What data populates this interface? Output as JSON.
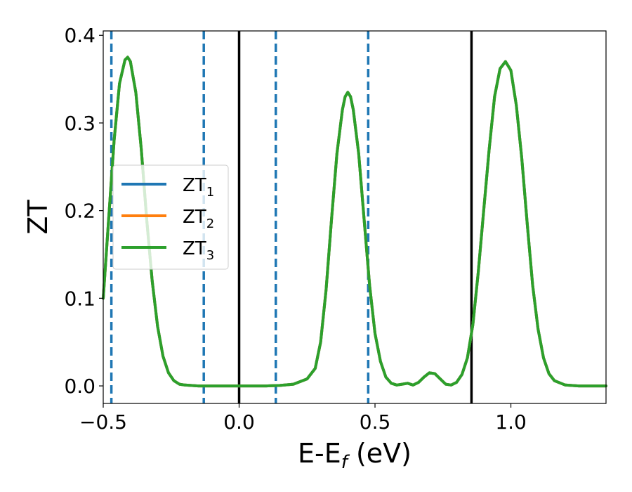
{
  "chart_data": {
    "type": "line",
    "title": "",
    "xlabel_main": "E-E",
    "xlabel_sub": "f",
    "xlabel_unit": " (eV)",
    "ylabel": "ZT",
    "xlim": [
      -0.5,
      1.35
    ],
    "ylim": [
      -0.02,
      0.405
    ],
    "xticks": [
      -0.5,
      0.0,
      0.5,
      1.0
    ],
    "xtick_labels": [
      "−0.5",
      "0.0",
      "0.5",
      "1.0"
    ],
    "yticks": [
      0.0,
      0.1,
      0.2,
      0.3,
      0.4
    ],
    "ytick_labels": [
      "0.0",
      "0.1",
      "0.2",
      "0.3",
      "0.4"
    ],
    "grid": false,
    "legend_position": "center-left",
    "series": [
      {
        "name": "ZT",
        "name_sub": "1",
        "color": "#1f77b4",
        "x": [
          -0.5,
          -0.48,
          -0.46,
          -0.44,
          -0.42,
          -0.41,
          -0.4,
          -0.38,
          -0.36,
          -0.34,
          -0.32,
          -0.3,
          -0.28,
          -0.26,
          -0.24,
          -0.22,
          -0.2,
          -0.15,
          -0.1,
          0.0,
          0.1,
          0.15,
          0.2,
          0.25,
          0.28,
          0.3,
          0.32,
          0.34,
          0.36,
          0.38,
          0.39,
          0.4,
          0.41,
          0.42,
          0.44,
          0.46,
          0.48,
          0.5,
          0.52,
          0.54,
          0.56,
          0.58,
          0.6,
          0.62,
          0.64,
          0.66,
          0.68,
          0.7,
          0.72,
          0.74,
          0.76,
          0.78,
          0.8,
          0.82,
          0.84,
          0.86,
          0.88,
          0.9,
          0.92,
          0.94,
          0.96,
          0.98,
          1.0,
          1.02,
          1.04,
          1.06,
          1.08,
          1.1,
          1.12,
          1.14,
          1.16,
          1.2,
          1.25,
          1.3,
          1.35
        ],
        "y": [
          0.1,
          0.19,
          0.28,
          0.345,
          0.372,
          0.375,
          0.37,
          0.335,
          0.27,
          0.19,
          0.12,
          0.068,
          0.034,
          0.015,
          0.006,
          0.002,
          0.001,
          0.0,
          0.0,
          0.0,
          0.0,
          0.0005,
          0.002,
          0.008,
          0.02,
          0.05,
          0.11,
          0.19,
          0.265,
          0.315,
          0.33,
          0.335,
          0.33,
          0.315,
          0.265,
          0.19,
          0.115,
          0.06,
          0.028,
          0.01,
          0.003,
          0.001,
          0.002,
          0.003,
          0.001,
          0.004,
          0.01,
          0.015,
          0.014,
          0.008,
          0.002,
          0.001,
          0.004,
          0.013,
          0.032,
          0.07,
          0.13,
          0.2,
          0.27,
          0.33,
          0.362,
          0.37,
          0.36,
          0.32,
          0.26,
          0.185,
          0.115,
          0.065,
          0.032,
          0.014,
          0.006,
          0.001,
          0.0,
          0.0,
          0.0
        ]
      },
      {
        "name": "ZT",
        "name_sub": "2",
        "color": "#ff7f0e",
        "x": [
          -0.5,
          -0.48,
          -0.46,
          -0.44,
          -0.42,
          -0.41,
          -0.4,
          -0.38,
          -0.36,
          -0.34,
          -0.32,
          -0.3,
          -0.28,
          -0.26,
          -0.24,
          -0.22,
          -0.2,
          -0.15,
          -0.1,
          0.0,
          0.1,
          0.15,
          0.2,
          0.25,
          0.28,
          0.3,
          0.32,
          0.34,
          0.36,
          0.38,
          0.39,
          0.4,
          0.41,
          0.42,
          0.44,
          0.46,
          0.48,
          0.5,
          0.52,
          0.54,
          0.56,
          0.58,
          0.6,
          0.62,
          0.64,
          0.66,
          0.68,
          0.7,
          0.72,
          0.74,
          0.76,
          0.78,
          0.8,
          0.82,
          0.84,
          0.86,
          0.88,
          0.9,
          0.92,
          0.94,
          0.96,
          0.98,
          1.0,
          1.02,
          1.04,
          1.06,
          1.08,
          1.1,
          1.12,
          1.14,
          1.16,
          1.2,
          1.25,
          1.3,
          1.35
        ],
        "y": [
          0.1,
          0.19,
          0.28,
          0.345,
          0.372,
          0.375,
          0.37,
          0.335,
          0.27,
          0.19,
          0.12,
          0.068,
          0.034,
          0.015,
          0.006,
          0.002,
          0.001,
          0.0,
          0.0,
          0.0,
          0.0,
          0.0005,
          0.002,
          0.008,
          0.02,
          0.05,
          0.11,
          0.19,
          0.265,
          0.315,
          0.33,
          0.335,
          0.33,
          0.315,
          0.265,
          0.19,
          0.115,
          0.06,
          0.028,
          0.01,
          0.003,
          0.001,
          0.002,
          0.003,
          0.001,
          0.004,
          0.01,
          0.015,
          0.014,
          0.008,
          0.002,
          0.001,
          0.004,
          0.013,
          0.032,
          0.07,
          0.13,
          0.2,
          0.27,
          0.33,
          0.362,
          0.37,
          0.36,
          0.32,
          0.26,
          0.185,
          0.115,
          0.065,
          0.032,
          0.014,
          0.006,
          0.001,
          0.0,
          0.0,
          0.0
        ]
      },
      {
        "name": "ZT",
        "name_sub": "3",
        "color": "#2ca02c",
        "x": [
          -0.5,
          -0.48,
          -0.46,
          -0.44,
          -0.42,
          -0.41,
          -0.4,
          -0.38,
          -0.36,
          -0.34,
          -0.32,
          -0.3,
          -0.28,
          -0.26,
          -0.24,
          -0.22,
          -0.2,
          -0.15,
          -0.1,
          0.0,
          0.1,
          0.15,
          0.2,
          0.25,
          0.28,
          0.3,
          0.32,
          0.34,
          0.36,
          0.38,
          0.39,
          0.4,
          0.41,
          0.42,
          0.44,
          0.46,
          0.48,
          0.5,
          0.52,
          0.54,
          0.56,
          0.58,
          0.6,
          0.62,
          0.64,
          0.66,
          0.68,
          0.7,
          0.72,
          0.74,
          0.76,
          0.78,
          0.8,
          0.82,
          0.84,
          0.86,
          0.88,
          0.9,
          0.92,
          0.94,
          0.96,
          0.98,
          1.0,
          1.02,
          1.04,
          1.06,
          1.08,
          1.1,
          1.12,
          1.14,
          1.16,
          1.2,
          1.25,
          1.3,
          1.35
        ],
        "y": [
          0.1,
          0.19,
          0.28,
          0.345,
          0.372,
          0.375,
          0.37,
          0.335,
          0.27,
          0.19,
          0.12,
          0.068,
          0.034,
          0.015,
          0.006,
          0.002,
          0.001,
          0.0,
          0.0,
          0.0,
          0.0,
          0.0005,
          0.002,
          0.008,
          0.02,
          0.05,
          0.11,
          0.19,
          0.265,
          0.315,
          0.33,
          0.335,
          0.33,
          0.315,
          0.265,
          0.19,
          0.115,
          0.06,
          0.028,
          0.01,
          0.003,
          0.001,
          0.002,
          0.003,
          0.001,
          0.004,
          0.01,
          0.015,
          0.014,
          0.008,
          0.002,
          0.001,
          0.004,
          0.013,
          0.032,
          0.07,
          0.13,
          0.2,
          0.27,
          0.33,
          0.362,
          0.37,
          0.36,
          0.32,
          0.26,
          0.185,
          0.115,
          0.065,
          0.032,
          0.014,
          0.006,
          0.001,
          0.0,
          0.0,
          0.0
        ]
      }
    ],
    "vlines_dashed": {
      "color": "#1f77b4",
      "x": [
        -0.47,
        -0.13,
        0.135,
        0.475
      ]
    },
    "vlines_solid": {
      "color": "#000000",
      "x": [
        0.0,
        0.855
      ]
    }
  }
}
